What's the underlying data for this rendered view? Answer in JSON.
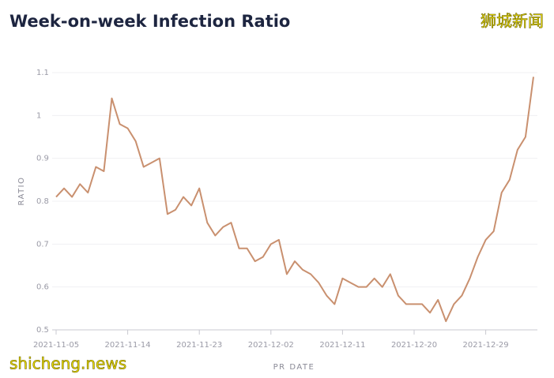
{
  "chart_data": {
    "type": "line",
    "title": "Week-on-week Infection Ratio",
    "watermarks": [
      "狮城新闻",
      "shicheng.news"
    ],
    "x_label": "PR DATE",
    "y_label": "RATIO",
    "x": [
      "2021-11-05",
      "2021-11-06",
      "2021-11-07",
      "2021-11-08",
      "2021-11-09",
      "2021-11-10",
      "2021-11-11",
      "2021-11-12",
      "2021-11-13",
      "2021-11-14",
      "2021-11-15",
      "2021-11-16",
      "2021-11-17",
      "2021-11-18",
      "2021-11-19",
      "2021-11-20",
      "2021-11-21",
      "2021-11-22",
      "2021-11-23",
      "2021-11-24",
      "2021-11-25",
      "2021-11-26",
      "2021-11-27",
      "2021-11-28",
      "2021-11-29",
      "2021-11-30",
      "2021-12-01",
      "2021-12-02",
      "2021-12-03",
      "2021-12-04",
      "2021-12-05",
      "2021-12-06",
      "2021-12-07",
      "2021-12-08",
      "2021-12-09",
      "2021-12-10",
      "2021-12-11",
      "2021-12-12",
      "2021-12-13",
      "2021-12-14",
      "2021-12-15",
      "2021-12-16",
      "2021-12-17",
      "2021-12-18",
      "2021-12-19",
      "2021-12-20",
      "2021-12-21",
      "2021-12-22",
      "2021-12-23",
      "2021-12-24",
      "2021-12-25",
      "2021-12-26",
      "2021-12-27",
      "2021-12-28",
      "2021-12-29",
      "2021-12-30",
      "2021-12-31",
      "2022-01-01",
      "2022-01-02",
      "2022-01-03",
      "2022-01-04"
    ],
    "series": [
      {
        "name": "Ratio",
        "color": "#c9906f",
        "values": [
          0.81,
          0.83,
          0.81,
          0.84,
          0.82,
          0.88,
          0.87,
          1.04,
          0.98,
          0.97,
          0.94,
          0.88,
          0.89,
          0.9,
          0.77,
          0.78,
          0.81,
          0.79,
          0.83,
          0.75,
          0.72,
          0.74,
          0.75,
          0.69,
          0.69,
          0.66,
          0.67,
          0.7,
          0.71,
          0.63,
          0.66,
          0.64,
          0.63,
          0.61,
          0.58,
          0.56,
          0.62,
          0.61,
          0.6,
          0.6,
          0.62,
          0.6,
          0.63,
          0.58,
          0.56,
          0.56,
          0.56,
          0.54,
          0.57,
          0.52,
          0.56,
          0.58,
          0.62,
          0.67,
          0.71,
          0.73,
          0.82,
          0.85,
          0.92,
          0.95,
          1.09
        ]
      }
    ],
    "xlim": [
      "2021-11-05",
      "2022-01-04"
    ],
    "xticks": [
      "2021-11-05",
      "2021-11-14",
      "2021-11-23",
      "2021-12-02",
      "2021-12-11",
      "2021-12-20",
      "2021-12-29"
    ],
    "ylim": [
      0.5,
      1.1
    ],
    "yticks": [
      0.5,
      0.6,
      0.7,
      0.8,
      0.9,
      1,
      1.1
    ],
    "grid": true
  }
}
